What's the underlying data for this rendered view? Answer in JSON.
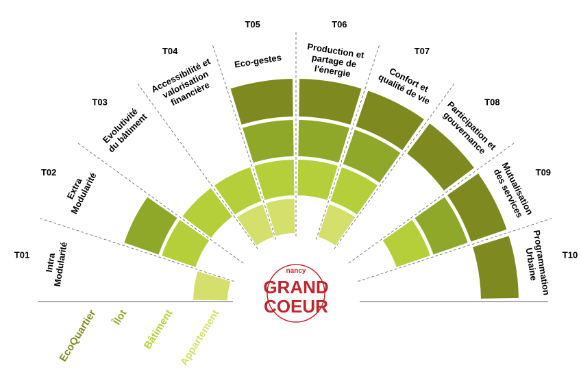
{
  "sectors": [
    {
      "code": "T01",
      "label": [
        "Intra",
        "Modularité"
      ],
      "levels": [
        3
      ]
    },
    {
      "code": "T02",
      "label": [
        "Extra",
        "Modularité"
      ],
      "levels": [
        2,
        1
      ]
    },
    {
      "code": "T03",
      "label": [
        "Evolutivité",
        "du bâtiment"
      ],
      "levels": [
        2
      ]
    },
    {
      "code": "T04",
      "label": [
        "Accessibilité et",
        "valorisation",
        "financière"
      ],
      "levels": [
        3,
        2
      ]
    },
    {
      "code": "T05",
      "label": [
        "Eco-gestes"
      ],
      "levels": [
        3,
        2,
        1,
        0
      ]
    },
    {
      "code": "T06",
      "label": [
        "Production et",
        "partage de",
        "l'énergie"
      ],
      "levels": [
        2,
        1,
        0
      ]
    },
    {
      "code": "T07",
      "label": [
        "Confort et",
        "qualité de vie"
      ],
      "levels": [
        3,
        2,
        1,
        0
      ]
    },
    {
      "code": "T08",
      "label": [
        "Participation et",
        "gouvernance"
      ],
      "levels": [
        0
      ]
    },
    {
      "code": "T09",
      "label": [
        "Mutualisation",
        "des services"
      ],
      "levels": [
        2,
        1,
        0
      ]
    },
    {
      "code": "T10",
      "label": [
        "Programmation",
        "Urbaine"
      ],
      "levels": [
        0
      ]
    }
  ],
  "legend": [
    {
      "name": "EcoQuartier",
      "color": "#7e8a1f"
    },
    {
      "name": "Îlot",
      "color": "#8fa82a"
    },
    {
      "name": "Bâtiment",
      "color": "#b5cf3a"
    },
    {
      "name": "Appartement",
      "color": "#d4e06b"
    }
  ],
  "logo": {
    "top": "nancy",
    "line1": "GRAND",
    "line2": "COEUR"
  }
}
